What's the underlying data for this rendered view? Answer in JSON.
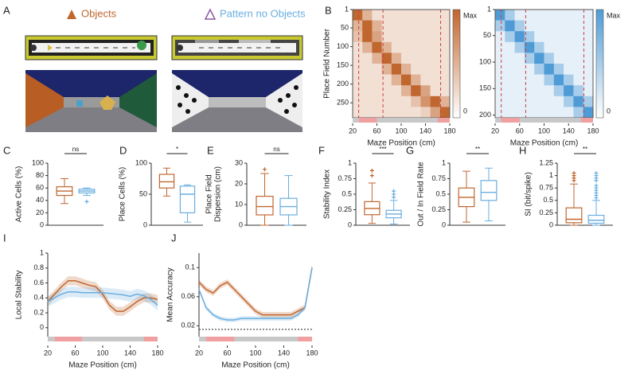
{
  "figure": {
    "panel_a": {
      "label": "A",
      "titles": [
        "Objects",
        "Pattern no Objects"
      ],
      "title_colors": [
        "#c0662f",
        "#6aaee0"
      ]
    }
  },
  "chart_data": [
    {
      "type": "heatmap",
      "panel": "B",
      "ylabel": "Place Field Number",
      "xlabel": "Maze Position (cm)",
      "color": "#c0662f",
      "xlim": [
        20,
        180
      ],
      "xticks": [
        20,
        60,
        100,
        140,
        180
      ],
      "ylim": [
        1,
        290
      ],
      "yticks": [
        1,
        50,
        100,
        150,
        200,
        250
      ],
      "clim": [
        0,
        1
      ],
      "cticks": [
        0,
        {
          "value": 1,
          "label": "Max"
        }
      ],
      "vlines": [
        30,
        70,
        165
      ],
      "shaded_x_ranges": [
        [
          30,
          60
        ],
        [
          160,
          180
        ]
      ],
      "values": [
        [
          1,
          0.5,
          0.2,
          0.2,
          0.2,
          0.2,
          0.2,
          0.2,
          0.2,
          0.2
        ],
        [
          0.5,
          1,
          0.5,
          0.2,
          0.2,
          0.2,
          0.2,
          0.2,
          0.2,
          0.2
        ],
        [
          0.4,
          1,
          0.6,
          0.2,
          0.2,
          0.2,
          0.2,
          0.2,
          0.2,
          0.2
        ],
        [
          0.2,
          0.5,
          1,
          0.5,
          0.2,
          0.2,
          0.2,
          0.2,
          0.2,
          0.2
        ],
        [
          0.2,
          0.2,
          0.5,
          1,
          0.5,
          0.2,
          0.2,
          0.2,
          0.2,
          0.2
        ],
        [
          0.2,
          0.2,
          0.2,
          0.5,
          1,
          0.5,
          0.2,
          0.2,
          0.2,
          0.2
        ],
        [
          0.2,
          0.2,
          0.2,
          0.2,
          0.5,
          1,
          0.5,
          0.2,
          0.2,
          0.2
        ],
        [
          0.2,
          0.2,
          0.2,
          0.2,
          0.2,
          0.5,
          1,
          0.6,
          0.2,
          0.2
        ],
        [
          0.2,
          0.2,
          0.2,
          0.2,
          0.2,
          0.2,
          0.4,
          0.7,
          1,
          0.5
        ],
        [
          0.2,
          0.2,
          0.2,
          0.2,
          0.2,
          0.2,
          0.2,
          0.3,
          0.6,
          1
        ]
      ]
    },
    {
      "type": "heatmap",
      "xlabel": "Maze Position (cm)",
      "color": "#4f9bd6",
      "xlim": [
        20,
        180
      ],
      "xticks": [
        20,
        60,
        100,
        140,
        180
      ],
      "ylim": [
        1,
        205
      ],
      "yticks": [
        1,
        50,
        100,
        150,
        200
      ],
      "clim": [
        0,
        1
      ],
      "cticks": [
        0,
        {
          "value": 1,
          "label": "Max"
        }
      ],
      "vlines": [
        30,
        70,
        165
      ],
      "shaded_x_ranges": [
        [
          30,
          60
        ],
        [
          160,
          180
        ]
      ],
      "values": [
        [
          1,
          0.5,
          0.15,
          0.15,
          0.15,
          0.15,
          0.15,
          0.15,
          0.15,
          0.15
        ],
        [
          0.5,
          1,
          0.5,
          0.15,
          0.15,
          0.15,
          0.15,
          0.15,
          0.15,
          0.15
        ],
        [
          0.15,
          0.5,
          1,
          0.5,
          0.15,
          0.15,
          0.15,
          0.15,
          0.15,
          0.15
        ],
        [
          0.15,
          0.15,
          0.5,
          1,
          0.5,
          0.15,
          0.15,
          0.15,
          0.15,
          0.15
        ],
        [
          0.15,
          0.15,
          0.15,
          0.5,
          1,
          0.5,
          0.15,
          0.15,
          0.15,
          0.15
        ],
        [
          0.15,
          0.15,
          0.15,
          0.15,
          0.5,
          1,
          0.5,
          0.15,
          0.15,
          0.15
        ],
        [
          0.15,
          0.15,
          0.15,
          0.15,
          0.15,
          0.5,
          1,
          0.5,
          0.15,
          0.15
        ],
        [
          0.15,
          0.15,
          0.15,
          0.15,
          0.15,
          0.15,
          0.5,
          1,
          0.5,
          0.15
        ],
        [
          0.15,
          0.15,
          0.15,
          0.15,
          0.15,
          0.15,
          0.15,
          0.5,
          1,
          0.5
        ],
        [
          0.15,
          0.15,
          0.15,
          0.15,
          0.15,
          0.15,
          0.15,
          0.15,
          0.5,
          1
        ]
      ]
    },
    {
      "type": "box",
      "panel": "C",
      "ylabel": [
        "Active Cells (%)"
      ],
      "ylim": [
        0,
        100
      ],
      "yticks": [
        0,
        20,
        40,
        60,
        80,
        100
      ],
      "significance": "ns",
      "boxes": [
        {
          "color": "#c0662f",
          "whislo": 35,
          "q1": 48,
          "med": 55,
          "q3": 62,
          "whishi": 75,
          "fliers": []
        },
        {
          "color": "#6aaee0",
          "whislo": 48,
          "q1": 52,
          "med": 55,
          "q3": 58,
          "whishi": 60,
          "fliers": [
            38
          ]
        }
      ]
    },
    {
      "type": "box",
      "panel": "D",
      "ylabel": [
        "Place Cells (%)"
      ],
      "ylim": [
        0,
        100
      ],
      "yticks": [
        0,
        50,
        100
      ],
      "significance": "*",
      "boxes": [
        {
          "color": "#c0662f",
          "whislo": 47,
          "q1": 60,
          "med": 70,
          "q3": 82,
          "whishi": 92,
          "fliers": []
        },
        {
          "color": "#6aaee0",
          "whislo": 5,
          "q1": 20,
          "med": 50,
          "q3": 63,
          "whishi": 65,
          "fliers": []
        }
      ]
    },
    {
      "type": "box",
      "panel": "E",
      "ylabel": [
        "Place Field",
        "Dispersion (cm)"
      ],
      "ylim": [
        0,
        30
      ],
      "yticks": [
        0,
        10,
        20,
        30
      ],
      "significance": "ns",
      "boxes": [
        {
          "color": "#c0662f",
          "whislo": 0,
          "q1": 5,
          "med": 9,
          "q3": 14,
          "whishi": 25,
          "fliers": [
            27
          ]
        },
        {
          "color": "#6aaee0",
          "whislo": 0,
          "q1": 5,
          "med": 9,
          "q3": 13,
          "whishi": 24,
          "fliers": []
        }
      ]
    },
    {
      "type": "box",
      "panel": "F",
      "ylabel": [
        "Stability Index"
      ],
      "ylim": [
        0,
        1
      ],
      "yticks": [
        0,
        0.25,
        0.5,
        0.75,
        1
      ],
      "significance": "***",
      "boxes": [
        {
          "color": "#c0662f",
          "whislo": 0.03,
          "q1": 0.17,
          "med": 0.27,
          "q3": 0.38,
          "whishi": 0.68,
          "fliers": [
            0.8,
            0.88
          ]
        },
        {
          "color": "#6aaee0",
          "whislo": 0.02,
          "q1": 0.12,
          "med": 0.18,
          "q3": 0.24,
          "whishi": 0.4,
          "fliers": [
            0.45,
            0.5,
            0.55
          ]
        }
      ]
    },
    {
      "type": "box",
      "panel": "G",
      "ylabel": [
        "Out / In Field Rate"
      ],
      "ylim": [
        0,
        1
      ],
      "yticks": [
        0,
        0.25,
        0.5,
        0.75,
        1
      ],
      "significance": "**",
      "boxes": [
        {
          "color": "#c0662f",
          "whislo": 0.05,
          "q1": 0.3,
          "med": 0.45,
          "q3": 0.6,
          "whishi": 0.87,
          "fliers": []
        },
        {
          "color": "#6aaee0",
          "whislo": 0.07,
          "q1": 0.4,
          "med": 0.53,
          "q3": 0.72,
          "whishi": 0.92,
          "fliers": []
        }
      ]
    },
    {
      "type": "box",
      "panel": "H",
      "ylabel": [
        "SI (bit/spike)"
      ],
      "ylim": [
        0,
        1.25
      ],
      "yticks": [
        0,
        0.25,
        0.5,
        0.75,
        1,
        1.25
      ],
      "significance": "**",
      "boxes": [
        {
          "color": "#c0662f",
          "whislo": 0,
          "q1": 0.05,
          "med": 0.12,
          "q3": 0.35,
          "whishi": 0.83,
          "fliers": [
            0.9,
            0.95,
            1,
            1.05
          ]
        },
        {
          "color": "#6aaee0",
          "whislo": 0,
          "q1": 0.04,
          "med": 0.1,
          "q3": 0.2,
          "whishi": 0.5,
          "fliers": [
            0.55,
            0.6,
            0.65,
            0.7,
            0.75,
            0.8,
            0.9,
            0.95,
            1,
            1.05
          ]
        }
      ]
    },
    {
      "type": "line",
      "panel": "I",
      "ylabel": [
        "Local Stability"
      ],
      "xlabel": "Maze Position (cm)",
      "xlim": [
        20,
        180
      ],
      "xticks": [
        20,
        60,
        100,
        140,
        180
      ],
      "ylim": [
        -0.12,
        1
      ],
      "yticks": [
        0,
        0.2,
        0.4,
        0.6,
        0.8,
        1
      ],
      "shaded_x_ranges": [
        [
          30,
          70
        ],
        [
          160,
          180
        ]
      ],
      "x": [
        20,
        30,
        40,
        50,
        60,
        70,
        80,
        90,
        100,
        110,
        120,
        130,
        140,
        150,
        160,
        170,
        180
      ],
      "series": [
        {
          "color": "#c0662f",
          "error": 0.06,
          "values": [
            0.35,
            0.45,
            0.55,
            0.63,
            0.63,
            0.6,
            0.57,
            0.55,
            0.45,
            0.3,
            0.22,
            0.22,
            0.28,
            0.35,
            0.4,
            0.4,
            0.38
          ]
        },
        {
          "color": "#6aaee0",
          "error": 0.07,
          "values": [
            0.35,
            0.4,
            0.45,
            0.48,
            0.48,
            0.47,
            0.47,
            0.47,
            0.47,
            0.46,
            0.45,
            0.44,
            0.42,
            0.45,
            0.43,
            0.38,
            0.3
          ]
        }
      ]
    },
    {
      "type": "line",
      "panel": "J",
      "ylabel": [
        "Mean Accuracy"
      ],
      "xlabel": "Maze Position (cm)",
      "xlim": [
        20,
        180
      ],
      "xticks": [
        20,
        60,
        100,
        140,
        180
      ],
      "ylim": [
        0.005,
        0.12
      ],
      "yticks": [
        0.02,
        0.06,
        0.1
      ],
      "shaded_x_ranges": [
        [
          30,
          70
        ],
        [
          160,
          180
        ]
      ],
      "hline": 0.015,
      "x": [
        20,
        30,
        40,
        50,
        60,
        70,
        80,
        90,
        100,
        110,
        120,
        130,
        140,
        150,
        160,
        170,
        180
      ],
      "series": [
        {
          "color": "#c0662f",
          "error": 0.004,
          "values": [
            0.08,
            0.07,
            0.065,
            0.075,
            0.08,
            0.07,
            0.06,
            0.05,
            0.04,
            0.035,
            0.035,
            0.035,
            0.035,
            0.035,
            0.04,
            0.045,
            0.1
          ]
        },
        {
          "color": "#6aaee0",
          "error": 0.003,
          "values": [
            0.07,
            0.045,
            0.035,
            0.03,
            0.028,
            0.028,
            0.03,
            0.03,
            0.03,
            0.03,
            0.03,
            0.03,
            0.03,
            0.03,
            0.035,
            0.045,
            0.1
          ]
        }
      ]
    }
  ]
}
